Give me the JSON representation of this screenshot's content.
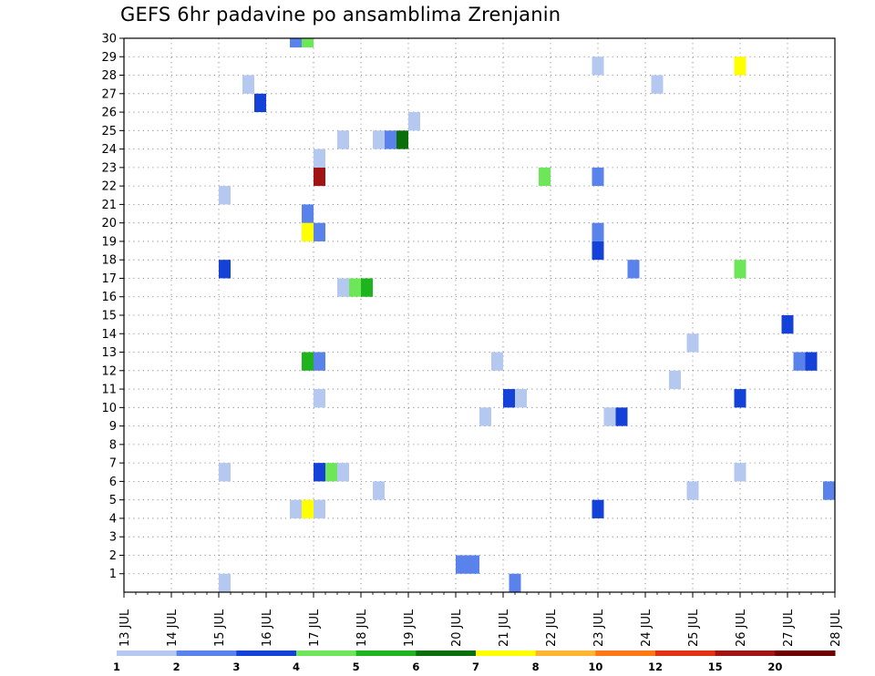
{
  "chart_data": {
    "type": "heatmap",
    "title": "GEFS 6hr padavine po ansamblima Zrenjanin",
    "xlabel": "",
    "ylabel": "",
    "x_ticks": [
      "13 JUL",
      "14 JUL",
      "15 JUL",
      "16 JUL",
      "17 JUL",
      "18 JUL",
      "19 JUL",
      "20 JUL",
      "21 JUL",
      "22 JUL",
      "23 JUL",
      "24 JUL",
      "25 JUL",
      "26 JUL",
      "27 JUL",
      "28 JUL"
    ],
    "y_ticks": [
      "1",
      "2",
      "3",
      "4",
      "5",
      "6",
      "7",
      "8",
      "9",
      "10",
      "11",
      "12",
      "13",
      "14",
      "15",
      "16",
      "17",
      "18",
      "19",
      "20",
      "21",
      "22",
      "23",
      "24",
      "25",
      "26",
      "27",
      "28",
      "29",
      "30"
    ],
    "xlim": [
      0,
      60
    ],
    "ylim": [
      0,
      30
    ],
    "grid": true,
    "x_unit_note": "6-hour steps from 13 JUL 00Z",
    "colorbar": {
      "labels": [
        "1",
        "2",
        "3",
        "4",
        "5",
        "6",
        "7",
        "8",
        "10",
        "12",
        "15",
        "20"
      ],
      "colors": [
        "#b4c8f0",
        "#5a82eb",
        "#1441d7",
        "#6ee65a",
        "#1eb41e",
        "#0a6e0a",
        "#ffff00",
        "#ffb432",
        "#ff7814",
        "#e13214",
        "#a01414",
        "#6e0000"
      ]
    },
    "points": [
      {
        "x": 8.5,
        "y": 0,
        "v": 1
      },
      {
        "x": 29.5,
        "y": 1,
        "v": 2
      },
      {
        "x": 28.5,
        "y": 1,
        "v": 2
      },
      {
        "x": 33,
        "y": 0,
        "v": 2
      },
      {
        "x": 14.5,
        "y": 4,
        "v": 1
      },
      {
        "x": 15.5,
        "y": 4,
        "v": 7
      },
      {
        "x": 16.5,
        "y": 4,
        "v": 1
      },
      {
        "x": 40,
        "y": 4,
        "v": 3
      },
      {
        "x": 21.5,
        "y": 5,
        "v": 1
      },
      {
        "x": 48,
        "y": 5,
        "v": 1
      },
      {
        "x": 59.5,
        "y": 5,
        "v": 2
      },
      {
        "x": 8.5,
        "y": 6,
        "v": 1
      },
      {
        "x": 16.5,
        "y": 6,
        "v": 3
      },
      {
        "x": 17.5,
        "y": 6,
        "v": 4
      },
      {
        "x": 18.5,
        "y": 6,
        "v": 1
      },
      {
        "x": 52,
        "y": 6,
        "v": 1
      },
      {
        "x": 30.5,
        "y": 9,
        "v": 1
      },
      {
        "x": 41,
        "y": 9,
        "v": 1
      },
      {
        "x": 42,
        "y": 9,
        "v": 3
      },
      {
        "x": 16.5,
        "y": 10,
        "v": 1
      },
      {
        "x": 32.5,
        "y": 10,
        "v": 3
      },
      {
        "x": 33.5,
        "y": 10,
        "v": 1
      },
      {
        "x": 52,
        "y": 10,
        "v": 3
      },
      {
        "x": 46.5,
        "y": 11,
        "v": 1
      },
      {
        "x": 15.5,
        "y": 12,
        "v": 5
      },
      {
        "x": 16.5,
        "y": 12,
        "v": 2
      },
      {
        "x": 31.5,
        "y": 12,
        "v": 1
      },
      {
        "x": 57,
        "y": 12,
        "v": 2
      },
      {
        "x": 58,
        "y": 12,
        "v": 3
      },
      {
        "x": 48,
        "y": 13,
        "v": 1
      },
      {
        "x": 56,
        "y": 14,
        "v": 3
      },
      {
        "x": 18.5,
        "y": 16,
        "v": 1
      },
      {
        "x": 19.5,
        "y": 16,
        "v": 4
      },
      {
        "x": 20.5,
        "y": 16,
        "v": 5
      },
      {
        "x": 8.5,
        "y": 17,
        "v": 3
      },
      {
        "x": 43,
        "y": 17,
        "v": 2
      },
      {
        "x": 52,
        "y": 17,
        "v": 4
      },
      {
        "x": 40,
        "y": 18,
        "v": 3
      },
      {
        "x": 15.5,
        "y": 19,
        "v": 7
      },
      {
        "x": 16.5,
        "y": 19,
        "v": 2
      },
      {
        "x": 40,
        "y": 19,
        "v": 2
      },
      {
        "x": 15.5,
        "y": 20,
        "v": 2
      },
      {
        "x": 8.5,
        "y": 21,
        "v": 1
      },
      {
        "x": 16.5,
        "y": 22,
        "v": 15
      },
      {
        "x": 35.5,
        "y": 22,
        "v": 4
      },
      {
        "x": 40,
        "y": 22,
        "v": 2
      },
      {
        "x": 16.5,
        "y": 23,
        "v": 1
      },
      {
        "x": 18.5,
        "y": 24,
        "v": 1
      },
      {
        "x": 21.5,
        "y": 24,
        "v": 1
      },
      {
        "x": 22.5,
        "y": 24,
        "v": 2
      },
      {
        "x": 23.5,
        "y": 24,
        "v": 6
      },
      {
        "x": 24.5,
        "y": 25,
        "v": 1
      },
      {
        "x": 11.5,
        "y": 26,
        "v": 3
      },
      {
        "x": 10.5,
        "y": 27,
        "v": 1
      },
      {
        "x": 45,
        "y": 27,
        "v": 1
      },
      {
        "x": 40,
        "y": 28,
        "v": 1
      },
      {
        "x": 52,
        "y": 28,
        "v": 7
      },
      {
        "x": 14.5,
        "y": 29.5,
        "v": 2
      },
      {
        "x": 15.5,
        "y": 29.5,
        "v": 4
      }
    ]
  }
}
